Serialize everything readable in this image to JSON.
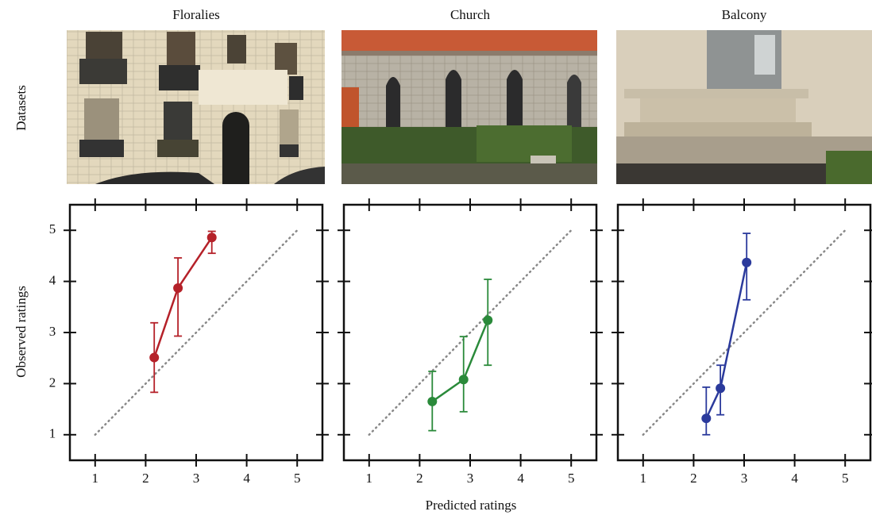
{
  "figure": {
    "row_label": "Datasets",
    "xlabel": "Predicted ratings",
    "ylabel": "Observed ratings"
  },
  "chart_data": [
    {
      "type": "line",
      "title": "Floralies",
      "xlim": [
        0.5,
        5.5
      ],
      "ylim": [
        0.5,
        5.5
      ],
      "xticks": [
        1,
        2,
        3,
        4,
        5
      ],
      "yticks": [
        1,
        2,
        3,
        4,
        5
      ],
      "identity_line": true,
      "series": [
        {
          "color": "#b52129",
          "x": [
            2.17,
            2.64,
            3.31
          ],
          "values": [
            2.51,
            3.87,
            4.86
          ],
          "lower": [
            1.83,
            2.93,
            4.55
          ],
          "upper": [
            3.19,
            4.46,
            4.98
          ]
        }
      ]
    },
    {
      "type": "line",
      "title": "Church",
      "xlim": [
        0.5,
        5.5
      ],
      "ylim": [
        0.5,
        5.5
      ],
      "xticks": [
        1,
        2,
        3,
        4,
        5
      ],
      "yticks": [
        1,
        2,
        3,
        4,
        5
      ],
      "identity_line": true,
      "series": [
        {
          "color": "#2a8a3a",
          "x": [
            2.25,
            2.87,
            3.35
          ],
          "values": [
            1.65,
            2.08,
            3.24
          ],
          "lower": [
            1.08,
            1.45,
            2.36
          ],
          "upper": [
            2.24,
            2.92,
            4.04
          ]
        }
      ]
    },
    {
      "type": "line",
      "title": "Balcony",
      "xlim": [
        0.5,
        5.5
      ],
      "ylim": [
        0.5,
        5.5
      ],
      "xticks": [
        1,
        2,
        3,
        4,
        5
      ],
      "yticks": [
        1,
        2,
        3,
        4,
        5
      ],
      "identity_line": true,
      "series": [
        {
          "color": "#2b3a9c",
          "x": [
            2.25,
            2.53,
            3.05
          ],
          "values": [
            1.32,
            1.91,
            4.37
          ],
          "lower": [
            1.0,
            1.39,
            3.64
          ],
          "upper": [
            1.93,
            2.36,
            4.94
          ]
        }
      ]
    }
  ]
}
